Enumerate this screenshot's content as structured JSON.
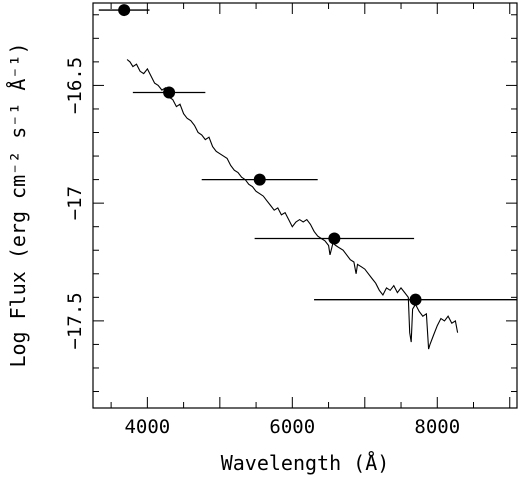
{
  "chart_data": {
    "type": "scatter",
    "title": "",
    "xlabel": "Wavelength (Å)",
    "ylabel": "Log Flux (erg cm⁻² s⁻¹ Å⁻¹)",
    "xlim": [
      3250,
      9100
    ],
    "ylim": [
      -17.87,
      -16.15
    ],
    "x_ticks": [
      4000,
      6000,
      8000
    ],
    "y_ticks": [
      -16.5,
      -17,
      -17.5
    ],
    "y_tick_labels": [
      "−16.5",
      "−17",
      "−17.5"
    ],
    "grid": false,
    "legend": "none",
    "series": [
      {
        "type": "errorbar-points",
        "points": [
          {
            "x": 3680,
            "xerr": 350,
            "y": -16.18
          },
          {
            "x": 4300,
            "xerr": 500,
            "y": -16.53
          },
          {
            "x": 5550,
            "xerr": 800,
            "y": -16.9
          },
          {
            "x": 6580,
            "xerr": 1100,
            "y": -17.15
          },
          {
            "x": 7700,
            "xerr": 1400,
            "y": -17.41
          }
        ]
      },
      {
        "type": "line",
        "points": [
          [
            3720,
            -16.39
          ],
          [
            3760,
            -16.4
          ],
          [
            3800,
            -16.42
          ],
          [
            3850,
            -16.41
          ],
          [
            3900,
            -16.44
          ],
          [
            3950,
            -16.45
          ],
          [
            4000,
            -16.43
          ],
          [
            4050,
            -16.46
          ],
          [
            4100,
            -16.49
          ],
          [
            4150,
            -16.5
          ],
          [
            4200,
            -16.52
          ],
          [
            4250,
            -16.51
          ],
          [
            4300,
            -16.55
          ],
          [
            4350,
            -16.56
          ],
          [
            4400,
            -16.59
          ],
          [
            4450,
            -16.58
          ],
          [
            4500,
            -16.62
          ],
          [
            4550,
            -16.64
          ],
          [
            4600,
            -16.65
          ],
          [
            4650,
            -16.67
          ],
          [
            4700,
            -16.7
          ],
          [
            4750,
            -16.71
          ],
          [
            4800,
            -16.73
          ],
          [
            4850,
            -16.72
          ],
          [
            4900,
            -16.76
          ],
          [
            4950,
            -16.78
          ],
          [
            5000,
            -16.79
          ],
          [
            5050,
            -16.8
          ],
          [
            5100,
            -16.81
          ],
          [
            5150,
            -16.84
          ],
          [
            5200,
            -16.86
          ],
          [
            5250,
            -16.87
          ],
          [
            5300,
            -16.89
          ],
          [
            5350,
            -16.9
          ],
          [
            5400,
            -16.92
          ],
          [
            5450,
            -16.93
          ],
          [
            5500,
            -16.95
          ],
          [
            5550,
            -16.96
          ],
          [
            5600,
            -16.97
          ],
          [
            5650,
            -16.99
          ],
          [
            5700,
            -17.01
          ],
          [
            5750,
            -17.03
          ],
          [
            5800,
            -17.02
          ],
          [
            5850,
            -17.05
          ],
          [
            5900,
            -17.04
          ],
          [
            5950,
            -17.07
          ],
          [
            6000,
            -17.1
          ],
          [
            6050,
            -17.08
          ],
          [
            6100,
            -17.07
          ],
          [
            6150,
            -17.08
          ],
          [
            6200,
            -17.07
          ],
          [
            6250,
            -17.09
          ],
          [
            6300,
            -17.12
          ],
          [
            6350,
            -17.14
          ],
          [
            6400,
            -17.15
          ],
          [
            6450,
            -17.16
          ],
          [
            6500,
            -17.18
          ],
          [
            6520,
            -17.22
          ],
          [
            6560,
            -17.17
          ],
          [
            6600,
            -17.18
          ],
          [
            6650,
            -17.19
          ],
          [
            6700,
            -17.2
          ],
          [
            6750,
            -17.22
          ],
          [
            6800,
            -17.24
          ],
          [
            6850,
            -17.25
          ],
          [
            6880,
            -17.3
          ],
          [
            6900,
            -17.26
          ],
          [
            6950,
            -17.27
          ],
          [
            7000,
            -17.28
          ],
          [
            7050,
            -17.3
          ],
          [
            7100,
            -17.32
          ],
          [
            7150,
            -17.34
          ],
          [
            7200,
            -17.37
          ],
          [
            7250,
            -17.39
          ],
          [
            7300,
            -17.36
          ],
          [
            7350,
            -17.37
          ],
          [
            7400,
            -17.35
          ],
          [
            7450,
            -17.38
          ],
          [
            7500,
            -17.36
          ],
          [
            7550,
            -17.38
          ],
          [
            7600,
            -17.4
          ],
          [
            7620,
            -17.55
          ],
          [
            7640,
            -17.59
          ],
          [
            7660,
            -17.45
          ],
          [
            7700,
            -17.43
          ],
          [
            7750,
            -17.46
          ],
          [
            7800,
            -17.48
          ],
          [
            7850,
            -17.47
          ],
          [
            7880,
            -17.62
          ],
          [
            7900,
            -17.6
          ],
          [
            7950,
            -17.56
          ],
          [
            8000,
            -17.52
          ],
          [
            8050,
            -17.49
          ],
          [
            8100,
            -17.5
          ],
          [
            8150,
            -17.48
          ],
          [
            8200,
            -17.51
          ],
          [
            8250,
            -17.5
          ],
          [
            8280,
            -17.55
          ]
        ]
      }
    ]
  }
}
